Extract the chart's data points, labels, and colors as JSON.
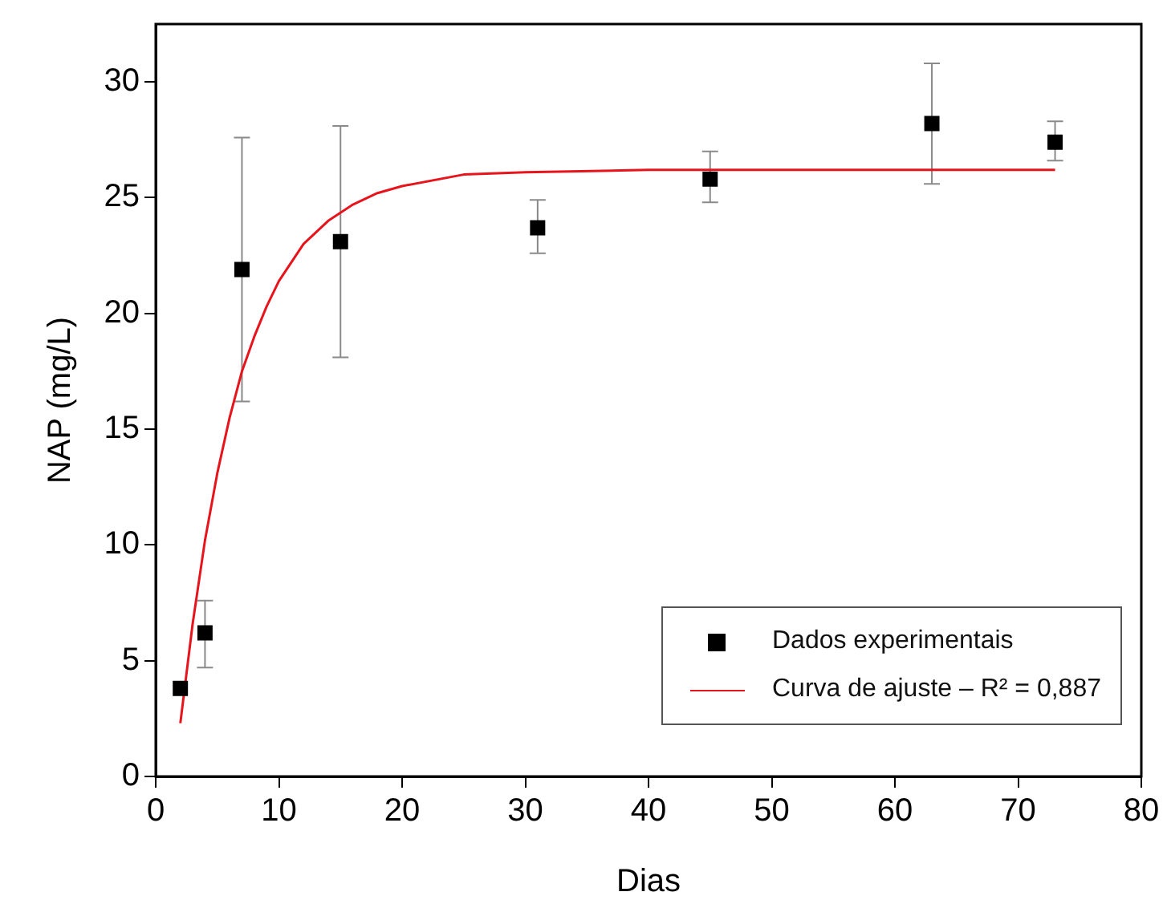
{
  "chart_data": {
    "type": "scatter",
    "xlabel": "Dias",
    "ylabel": "NAP (mg/L)",
    "xlim": [
      0,
      80
    ],
    "xticks": [
      0,
      10,
      20,
      30,
      40,
      50,
      60,
      70,
      80
    ],
    "ylim": [
      0,
      32.5
    ],
    "yticks": [
      0,
      5,
      10,
      15,
      20,
      25,
      30
    ],
    "grid": false,
    "legend": "bottom right",
    "series": [
      {
        "name": "Dados experimentais",
        "type": "scatter",
        "marker": "square",
        "color": "#000000",
        "x": [
          2,
          4,
          7,
          15,
          31,
          45,
          63,
          73
        ],
        "values": [
          3.8,
          6.2,
          21.9,
          23.1,
          23.7,
          25.8,
          28.2,
          27.4
        ],
        "errors": [
          null,
          [
            4.7,
            7.6
          ],
          [
            16.2,
            27.6
          ],
          [
            18.1,
            28.1
          ],
          [
            22.6,
            24.9
          ],
          [
            24.8,
            27.0
          ],
          [
            25.6,
            30.8
          ],
          [
            26.6,
            28.3
          ]
        ]
      },
      {
        "name": "Curva de ajuste – R² = 0,887",
        "type": "line",
        "marker": "none",
        "line_style": "solid",
        "color": "#e8141c",
        "x": [
          2,
          3,
          4,
          5,
          6,
          7,
          8,
          9,
          10,
          12,
          14,
          16,
          18,
          20,
          25,
          30,
          40,
          50,
          60,
          73
        ],
        "values": [
          2.3,
          6.6,
          10.2,
          13.1,
          15.5,
          17.5,
          19.0,
          20.3,
          21.4,
          23.0,
          24.0,
          24.7,
          25.2,
          25.5,
          26.0,
          26.1,
          26.2,
          26.2,
          26.2,
          26.2
        ]
      }
    ]
  }
}
